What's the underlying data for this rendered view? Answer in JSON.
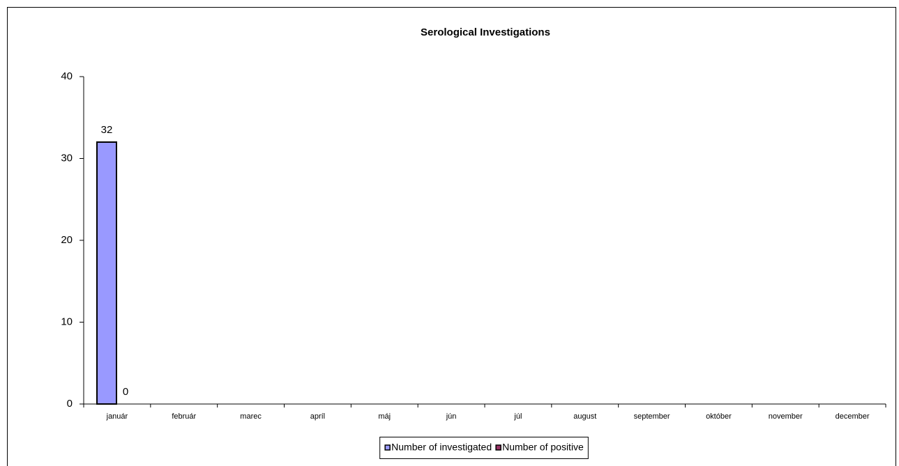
{
  "chart_data": {
    "type": "bar",
    "title": "Serological Investigations",
    "categories": [
      "január",
      "február",
      "marec",
      "apríl",
      "máj",
      "jún",
      "júl",
      "august",
      "september",
      "október",
      "november",
      "december"
    ],
    "series": [
      {
        "name": "Number of investigated",
        "color": "#9999ff",
        "values": [
          32,
          null,
          null,
          null,
          null,
          null,
          null,
          null,
          null,
          null,
          null,
          null
        ]
      },
      {
        "name": "Number of positive",
        "color": "#993366",
        "values": [
          0,
          null,
          null,
          null,
          null,
          null,
          null,
          null,
          null,
          null,
          null,
          null
        ]
      }
    ],
    "ylim": [
      0,
      40
    ],
    "yticks": [
      0,
      10,
      20,
      30,
      40
    ],
    "grid": false,
    "legend": "bottom"
  }
}
